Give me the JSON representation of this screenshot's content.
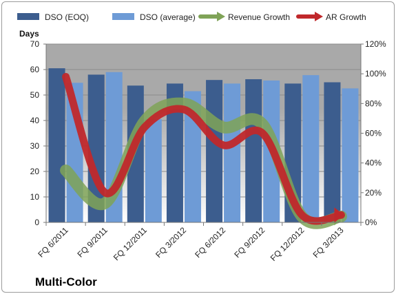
{
  "chart_data": {
    "type": "bar",
    "categories": [
      "FQ 6/2011",
      "FQ 9/2011",
      "FQ 12/2011",
      "FQ 3/2012",
      "FQ 6/2012",
      "FQ 9/2012",
      "FQ 12/2012",
      "FQ 3/2013"
    ],
    "series": [
      {
        "name": "DSO (EOQ)",
        "kind": "bar",
        "axis": "left",
        "color": "#3c5d8e",
        "values": [
          60.5,
          58.0,
          53.7,
          54.5,
          55.9,
          56.2,
          54.5,
          55.0
        ]
      },
      {
        "name": "DSO (average)",
        "kind": "bar",
        "axis": "left",
        "color": "#6e9bd6",
        "values": [
          54.8,
          59.0,
          40.5,
          51.5,
          54.5,
          55.7,
          57.8,
          52.6
        ]
      },
      {
        "name": "Revenue Growth",
        "kind": "arrow-line",
        "axis": "right",
        "color": "#7fa357",
        "values": [
          0.35,
          0.13,
          0.68,
          0.8,
          0.64,
          0.66,
          0.04,
          0.04
        ]
      },
      {
        "name": "AR Growth",
        "kind": "arrow-line",
        "axis": "right",
        "color": "#c0282b",
        "values": [
          0.98,
          0.2,
          0.64,
          0.76,
          0.52,
          0.6,
          0.05,
          0.05
        ]
      }
    ],
    "ylabel": "Days",
    "ylim": [
      0,
      70
    ],
    "yticks": [
      "0",
      "10",
      "20",
      "30",
      "40",
      "50",
      "60",
      "70"
    ],
    "y2lim": [
      0,
      1.2
    ],
    "y2ticks": [
      "0%",
      "20%",
      "40%",
      "60%",
      "80%",
      "100%",
      "120%"
    ],
    "legend_position": "top",
    "grid": "horizontal",
    "caption": "Multi-Color"
  },
  "colors": {
    "plot_top": "#a9a9a9",
    "plot_bottom": "#ffffff",
    "gridline": "#8a8a8a"
  }
}
